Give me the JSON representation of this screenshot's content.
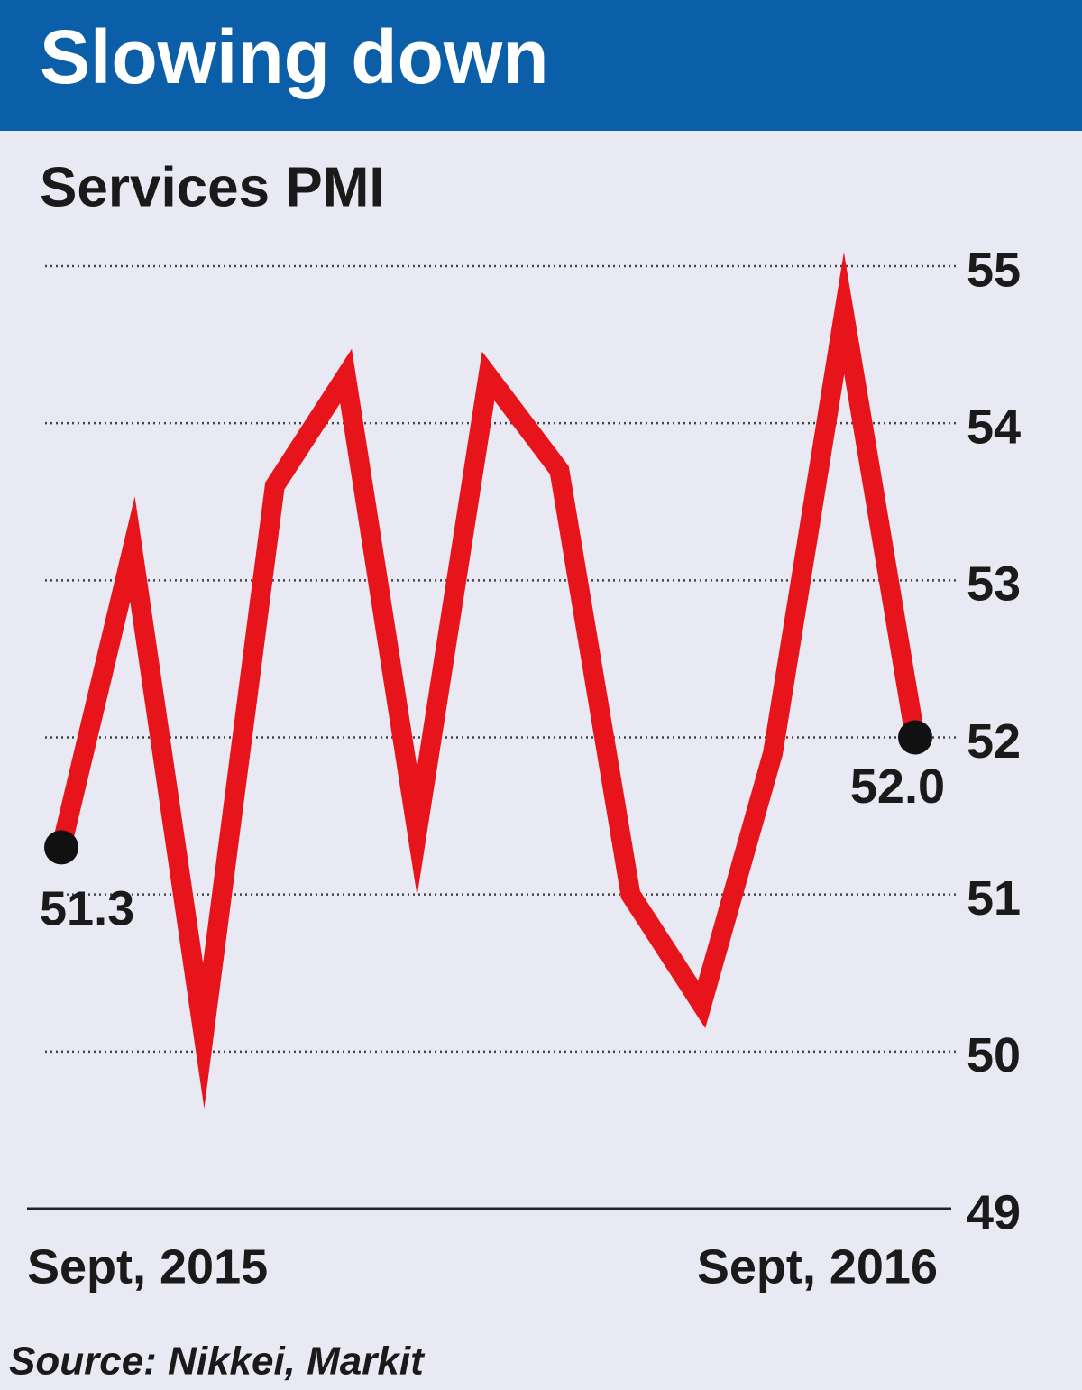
{
  "chart_data": {
    "type": "line",
    "title": "Slowing down",
    "subtitle": "Services PMI",
    "source": "Source: Nikkei, Markit",
    "categories": [
      "Sept, 2015",
      null,
      null,
      null,
      null,
      null,
      null,
      null,
      null,
      null,
      null,
      null,
      "Sept, 2016"
    ],
    "series": [
      {
        "name": "Services PMI",
        "color": "#e8141b",
        "values": [
          51.3,
          53.2,
          50.1,
          53.6,
          54.3,
          51.4,
          54.3,
          53.7,
          51.0,
          50.3,
          51.9,
          54.7,
          52.0
        ],
        "value_labels": [
          "51.3",
          null,
          null,
          null,
          null,
          null,
          null,
          null,
          null,
          null,
          null,
          null,
          "52.0"
        ]
      }
    ],
    "ylim": [
      49,
      55
    ],
    "yticks": [
      49,
      50,
      51,
      52,
      53,
      54,
      55
    ],
    "grid": true
  }
}
